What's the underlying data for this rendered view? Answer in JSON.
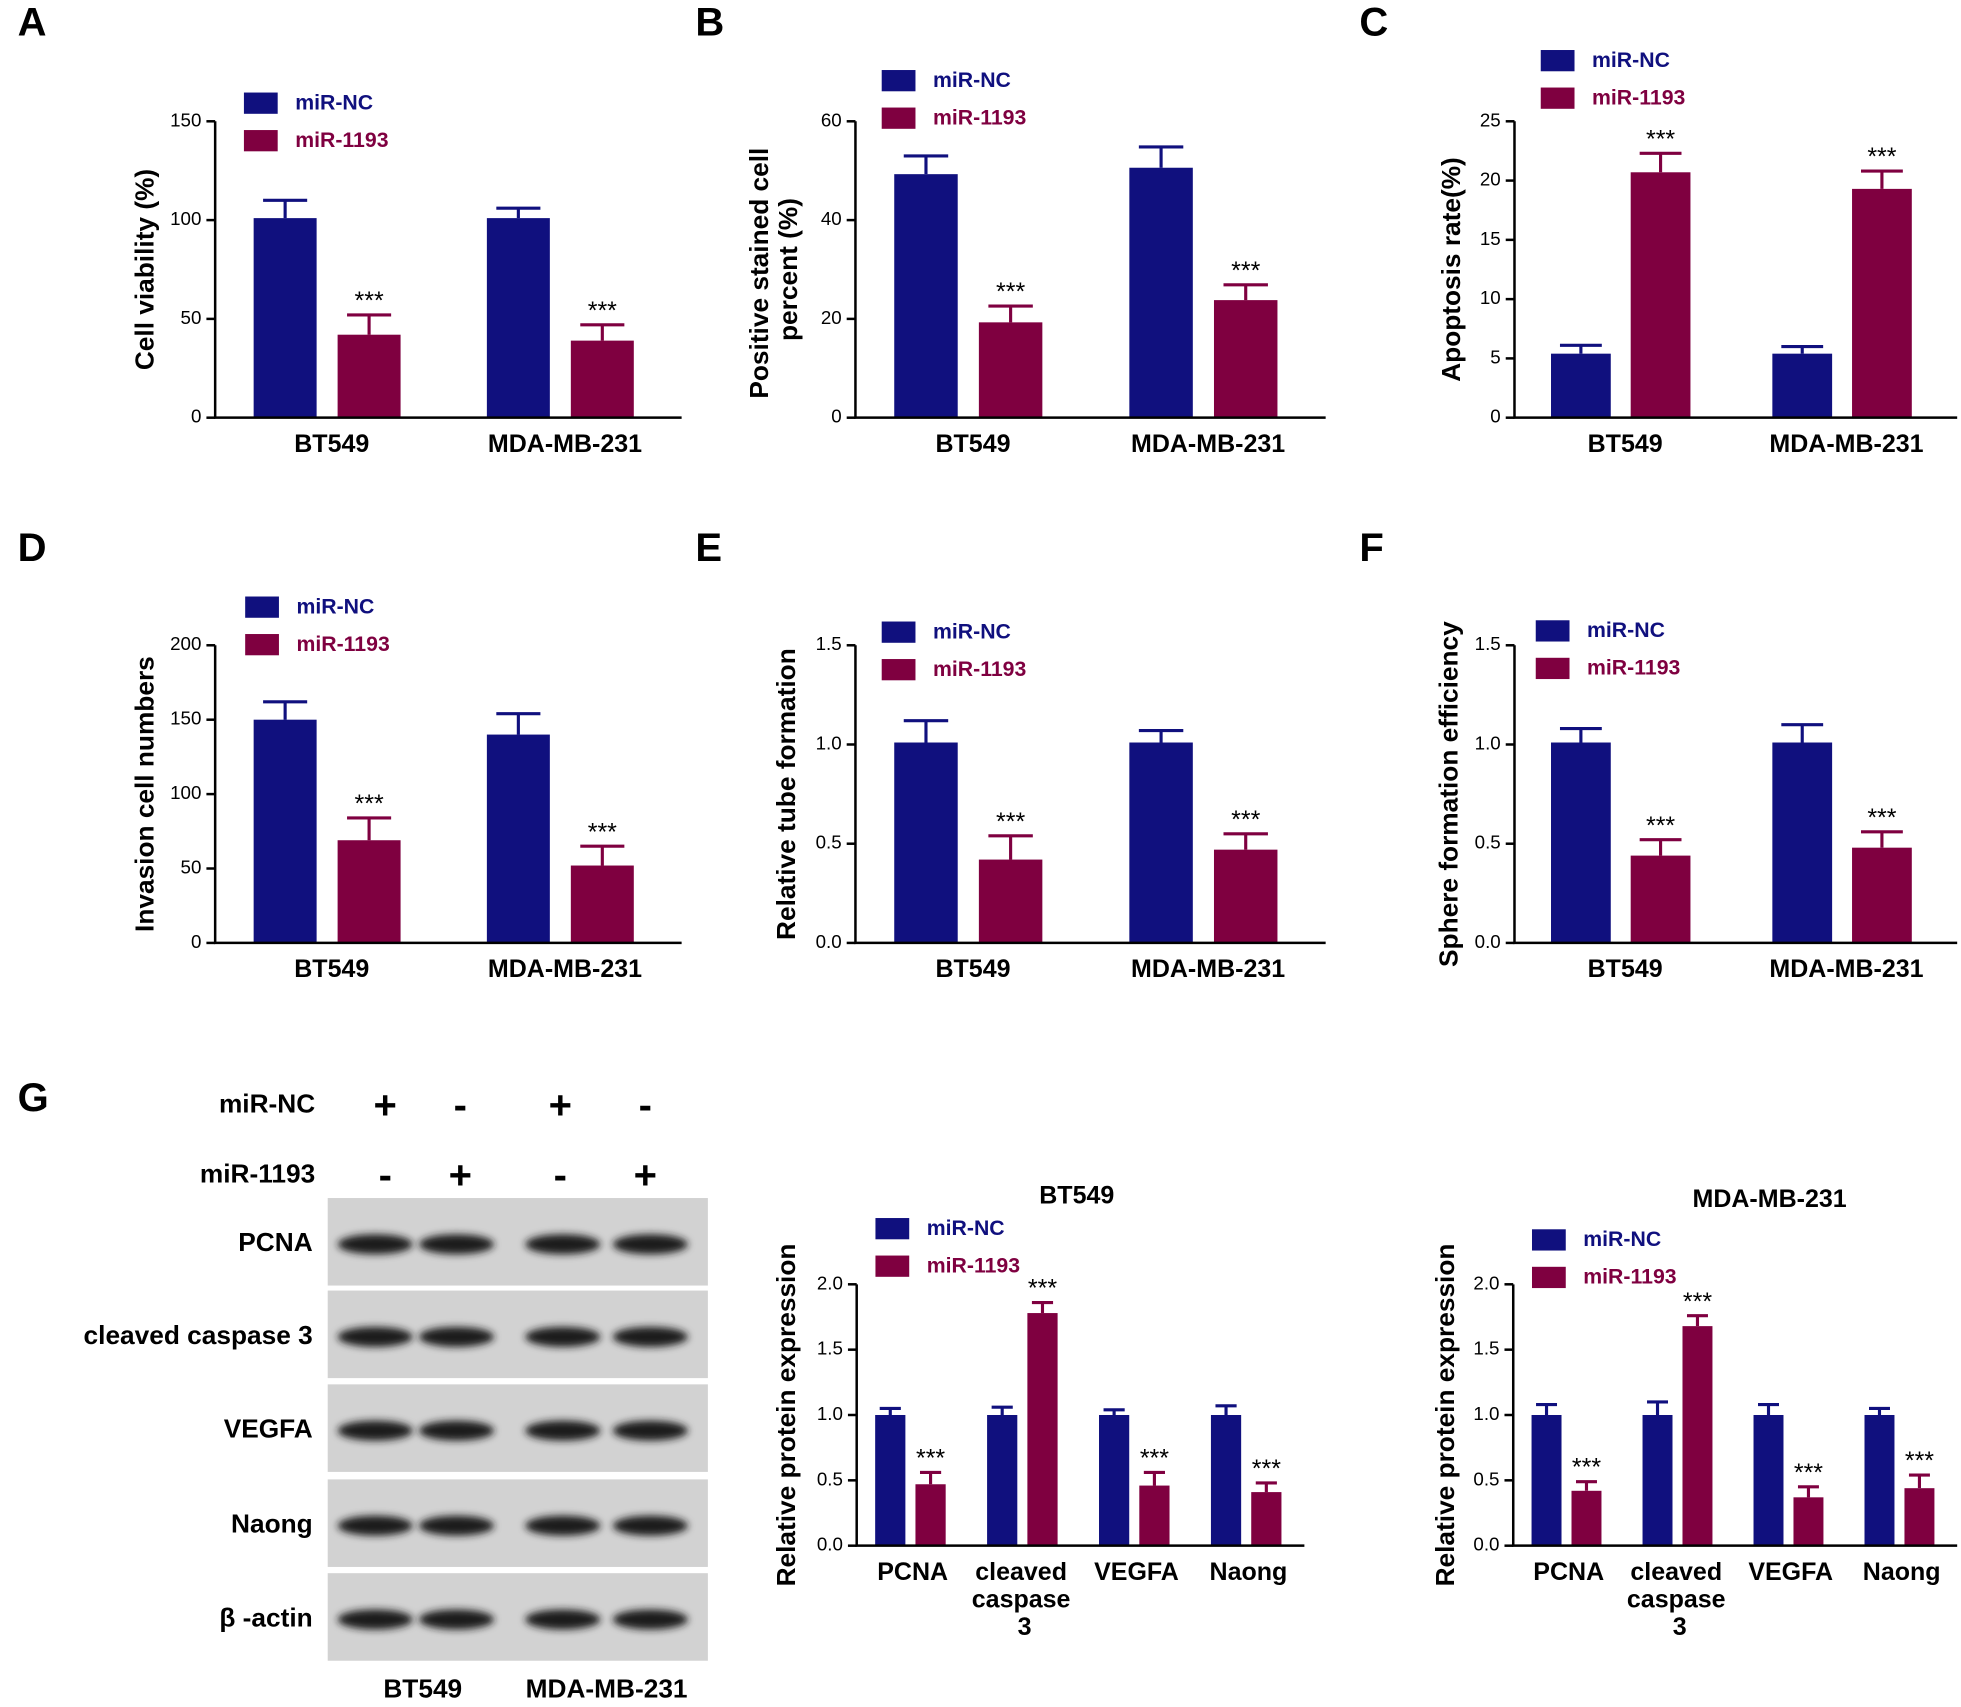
{
  "chart_data": [
    {
      "type": "bar",
      "panel": "A",
      "ylabel": "Cell viability (%)",
      "categories": [
        "BT549",
        "MDA-MB-231"
      ],
      "series": [
        {
          "name": "miR-NC",
          "color": "#10107e",
          "values": [
            101,
            101
          ],
          "errors": [
            9,
            5
          ]
        },
        {
          "name": "miR-1193",
          "color": "#7f0040",
          "values": [
            42,
            39
          ],
          "errors": [
            10,
            8
          ],
          "significance": [
            "***",
            "***"
          ]
        }
      ],
      "ylim": [
        0,
        150
      ],
      "yticks": [
        0,
        50,
        100,
        150
      ]
    },
    {
      "type": "bar",
      "panel": "B",
      "ylabel": "Positive stained cell percent (%)",
      "categories": [
        "BT549",
        "MDA-MB-231"
      ],
      "series": [
        {
          "name": "miR-NC",
          "color": "#10107e",
          "values": [
            49.3,
            50.6
          ],
          "errors": [
            3.7,
            4.2
          ]
        },
        {
          "name": "miR-1193",
          "color": "#7f0040",
          "values": [
            19.3,
            23.8
          ],
          "errors": [
            3.3,
            3.1
          ],
          "significance": [
            "***",
            "***"
          ]
        }
      ],
      "ylim": [
        0,
        60
      ],
      "yticks": [
        0,
        20,
        40,
        60
      ]
    },
    {
      "type": "bar",
      "panel": "C",
      "ylabel": "Apoptosis rate(%)",
      "categories": [
        "BT549",
        "MDA-MB-231"
      ],
      "series": [
        {
          "name": "miR-NC",
          "color": "#10107e",
          "values": [
            5.4,
            5.4
          ],
          "errors": [
            0.7,
            0.6
          ]
        },
        {
          "name": "miR-1193",
          "color": "#7f0040",
          "values": [
            20.7,
            19.3
          ],
          "errors": [
            1.6,
            1.5
          ],
          "significance": [
            "***",
            "***"
          ]
        }
      ],
      "ylim": [
        0,
        25
      ],
      "yticks": [
        0,
        5,
        10,
        15,
        20,
        25
      ]
    },
    {
      "type": "bar",
      "panel": "D",
      "ylabel": "Invasion cell numbers",
      "categories": [
        "BT549",
        "MDA-MB-231"
      ],
      "series": [
        {
          "name": "miR-NC",
          "color": "#10107e",
          "values": [
            150,
            140
          ],
          "errors": [
            12,
            14
          ]
        },
        {
          "name": "miR-1193",
          "color": "#7f0040",
          "values": [
            69,
            52
          ],
          "errors": [
            15,
            13
          ],
          "significance": [
            "***",
            "***"
          ]
        }
      ],
      "ylim": [
        0,
        200
      ],
      "yticks": [
        0,
        50,
        100,
        150,
        200
      ]
    },
    {
      "type": "bar",
      "panel": "E",
      "ylabel": "Relative tube formation",
      "categories": [
        "BT549",
        "MDA-MB-231"
      ],
      "series": [
        {
          "name": "miR-NC",
          "color": "#10107e",
          "values": [
            1.01,
            1.01
          ],
          "errors": [
            0.11,
            0.06
          ]
        },
        {
          "name": "miR-1193",
          "color": "#7f0040",
          "values": [
            0.42,
            0.47
          ],
          "errors": [
            0.12,
            0.08
          ],
          "significance": [
            "***",
            "***"
          ]
        }
      ],
      "ylim": [
        0,
        1.5
      ],
      "yticks": [
        {
          "value": 0,
          "label": "0.0"
        },
        0.5,
        {
          "value": 1,
          "label": "1.0"
        },
        1.5
      ]
    },
    {
      "type": "bar",
      "panel": "F",
      "ylabel": "Sphere formation efficiency",
      "categories": [
        "BT549",
        "MDA-MB-231"
      ],
      "series": [
        {
          "name": "miR-NC",
          "color": "#10107e",
          "values": [
            1.01,
            1.01
          ],
          "errors": [
            0.07,
            0.09
          ]
        },
        {
          "name": "miR-1193",
          "color": "#7f0040",
          "values": [
            0.44,
            0.48
          ],
          "errors": [
            0.08,
            0.08
          ],
          "significance": [
            "***",
            "***"
          ]
        }
      ],
      "ylim": [
        0,
        1.5
      ],
      "yticks": [
        {
          "value": 0,
          "label": "0.0"
        },
        0.5,
        {
          "value": 1,
          "label": "1.0"
        },
        1.5
      ]
    },
    {
      "type": "bar",
      "title": "BT549",
      "ylabel": "Relative protein expression",
      "categories": [
        "PCNA",
        "cleaved caspase 3",
        "VEGFA",
        "Naong"
      ],
      "series": [
        {
          "name": "miR-NC",
          "color": "#10107e",
          "values": [
            1.0,
            1.0,
            1.0,
            1.0
          ],
          "errors": [
            0.05,
            0.06,
            0.04,
            0.07
          ]
        },
        {
          "name": "miR-1193",
          "color": "#7f0040",
          "values": [
            0.47,
            1.78,
            0.46,
            0.41
          ],
          "errors": [
            0.09,
            0.08,
            0.1,
            0.07
          ],
          "significance": [
            "***",
            "***",
            "***",
            "***"
          ]
        }
      ],
      "ylim": [
        0,
        2
      ],
      "yticks": [
        {
          "value": 0,
          "label": "0.0"
        },
        0.5,
        {
          "value": 1,
          "label": "1.0"
        },
        1.5,
        {
          "value": 2,
          "label": "2.0"
        }
      ]
    },
    {
      "type": "bar",
      "title": "MDA-MB-231",
      "ylabel": "Relative protein expression",
      "categories": [
        "PCNA",
        "cleaved caspase 3",
        "VEGFA",
        "Naong"
      ],
      "series": [
        {
          "name": "miR-NC",
          "color": "#10107e",
          "values": [
            1.0,
            1.0,
            1.0,
            1.0
          ],
          "errors": [
            0.08,
            0.1,
            0.08,
            0.05
          ]
        },
        {
          "name": "miR-1193",
          "color": "#7f0040",
          "values": [
            0.42,
            1.68,
            0.37,
            0.44
          ],
          "errors": [
            0.07,
            0.08,
            0.08,
            0.1
          ],
          "significance": [
            "***",
            "***",
            "***",
            "***"
          ]
        }
      ],
      "ylim": [
        0,
        2
      ],
      "yticks": [
        {
          "value": 0,
          "label": "0.0"
        },
        0.5,
        {
          "value": 1,
          "label": "1.0"
        },
        1.5,
        {
          "value": 2,
          "label": "2.0"
        }
      ]
    }
  ],
  "blot": {
    "panel": "G",
    "treatments": [
      {
        "label": "miR-NC",
        "signs": [
          "+",
          "-",
          "+",
          "-"
        ]
      },
      {
        "label": "miR-1193",
        "signs": [
          "-",
          "+",
          "-",
          "+"
        ]
      }
    ],
    "proteins": [
      "PCNA",
      "cleaved caspase 3",
      "VEGFA",
      "Naong",
      "β -actin"
    ],
    "cell_lines": [
      "BT549",
      "MDA-MB-231"
    ]
  }
}
